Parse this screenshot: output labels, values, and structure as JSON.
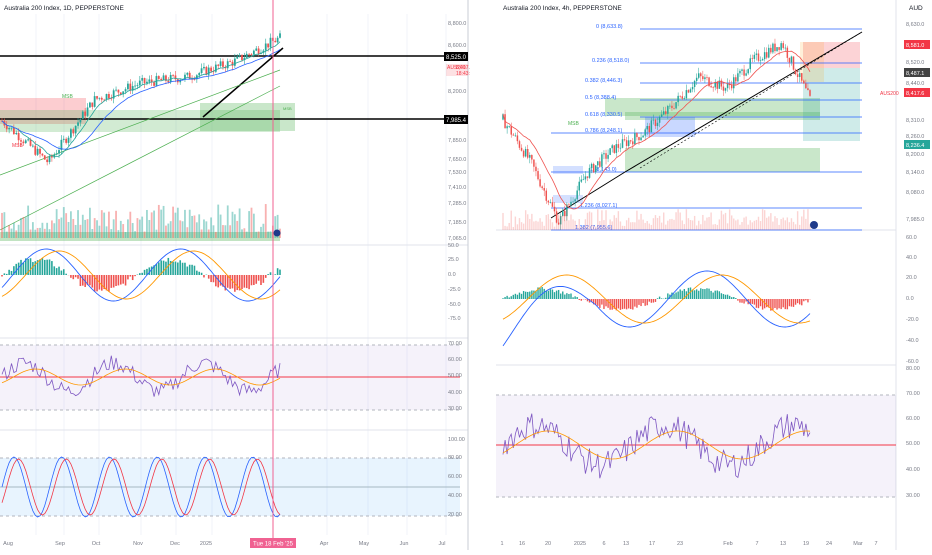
{
  "colors": {
    "up": "#26a69a",
    "down": "#ef5350",
    "fib": "#2962ff",
    "demand_zone": "#4caf50",
    "supply_zone": "#f23645",
    "rsi_line": "#7e57c2",
    "signal_line": "#ff9800",
    "marker": "#f06292",
    "price_tag": "#f23645"
  },
  "left_panel": {
    "title": "Australia 200 Index, 1D, PEPPERSTONE",
    "price_scale_labels": [
      "8,800.0",
      "8,600.0",
      "8,200.0",
      "7,850.0",
      "7,650.0",
      "7,530.0",
      "7,410.0",
      "7,285.0",
      "7,185.0",
      "7,065.0"
    ],
    "key_levels": [
      "8,525.0",
      "7,985.4"
    ],
    "symbol_tag": "AUS200",
    "symbol_price": "8,417.6",
    "symbol_sub": "18:43:49",
    "zone_labels": [
      "MSB",
      "MSB",
      "MSB"
    ],
    "macd_scale_labels": [
      "50.0",
      "25.0",
      "0.0",
      "-25.0",
      "-50.0",
      "-75.0"
    ],
    "rsi_scale_labels": [
      "70.00",
      "60.00",
      "50.00",
      "40.00",
      "30.00"
    ],
    "stoch_scale_labels": [
      "100.00",
      "80.00",
      "60.00",
      "40.00",
      "20.00"
    ],
    "time_labels": [
      "Aug",
      "Sep",
      "Oct",
      "Nov",
      "Dec",
      "2025",
      "Apr",
      "May",
      "Jun",
      "Jul"
    ],
    "cursor_label": "Tue 18 Feb '25",
    "chart_data": {
      "type": "line",
      "title": "Australia 200 Index, 1D, PEPPERSTONE",
      "x": [
        "Aug",
        "Sep",
        "Oct",
        "Nov",
        "Dec",
        "2025",
        "Feb"
      ],
      "series": [
        {
          "values": [
            7950,
            7620,
            8120,
            8250,
            8300,
            8420,
            8610
          ]
        }
      ],
      "ylim": [
        7065,
        8800
      ]
    }
  },
  "right_panel": {
    "title": "Australia 200 Index, 4h, PEPPERSTONE",
    "currency": "AUD",
    "price_scale_labels": [
      "8,630.0",
      "8,520.0",
      "8,440.0",
      "8,310.0",
      "8,260.0",
      "8,200.0",
      "8,140.0",
      "8,080.0",
      "7,985.0"
    ],
    "price_tags": [
      "8,581.0",
      "8,487.1",
      "8,417.6",
      "8,236.4"
    ],
    "symbol_tag": "AUS200",
    "fib_labels": [
      "0 (8,633.8)",
      "0.236 (8,518.0)",
      "0.382 (8,446.3)",
      "0.5 (8,388.4)",
      "0.618 (8,330.5)",
      "0.786 (8,248.1)",
      "1 (8,143.0)",
      "1.236 (8,027.1)",
      "1.382 (7,955.6)"
    ],
    "zone_label": "MSB",
    "macd_scale_labels": [
      "60.0",
      "40.0",
      "20.0",
      "0.0",
      "-20.0",
      "-40.0",
      "-60.0"
    ],
    "rsi_scale_labels": [
      "80.00",
      "70.00",
      "60.00",
      "50.00",
      "40.00",
      "30.00"
    ],
    "time_labels": [
      "1",
      "16",
      "20",
      "2025",
      "6",
      "13",
      "17",
      "23",
      "Feb",
      "7",
      "13",
      "19",
      "24",
      "Mar",
      "7"
    ],
    "chart_data": {
      "type": "line",
      "title": "Australia 200 Index, 4h, PEPPERSTONE",
      "x": [
        "1",
        "16",
        "20",
        "2025",
        "6",
        "13",
        "17",
        "23",
        "Feb",
        "7",
        "13",
        "19"
      ],
      "series": [
        {
          "values": [
            8350,
            8200,
            7990,
            8160,
            8250,
            8300,
            8390,
            8500,
            8460,
            8560,
            8620,
            8420
          ]
        }
      ],
      "ylim": [
        7955,
        8700
      ]
    }
  }
}
